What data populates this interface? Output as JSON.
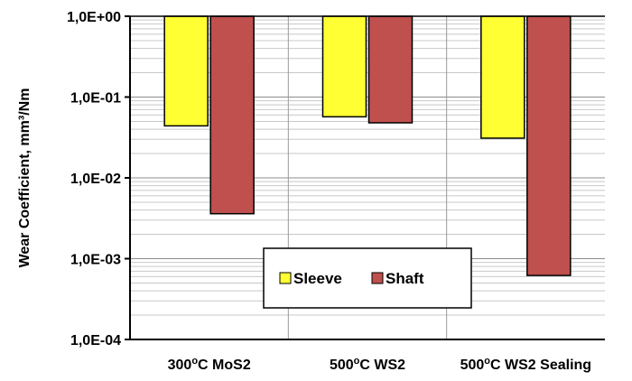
{
  "chart_data": {
    "type": "bar",
    "y_scale": "log",
    "bar_direction": "down-from-top",
    "ylabel": "Wear Coefficient,  mm³/Nm",
    "ylim": [
      0.0001,
      1
    ],
    "y_ticks": [
      {
        "value": 1,
        "label": "1,0E+00"
      },
      {
        "value": 0.1,
        "label": "1,0E-01"
      },
      {
        "value": 0.01,
        "label": "1,0E-02"
      },
      {
        "value": 0.001,
        "label": "1,0E-03"
      },
      {
        "value": 0.0001,
        "label": "1,0E-04"
      }
    ],
    "categories": [
      "300oC MoS2",
      "500oC WS2",
      "500oC WS2 Sealing"
    ],
    "series": [
      {
        "name": "Sleeve",
        "color": "#ffff33",
        "values": [
          0.044,
          0.057,
          0.031
        ]
      },
      {
        "name": "Shaft",
        "color": "#c0504d",
        "values": [
          0.0036,
          0.048,
          0.00062
        ]
      }
    ],
    "grid": true,
    "legend_position": "bottom-center"
  }
}
